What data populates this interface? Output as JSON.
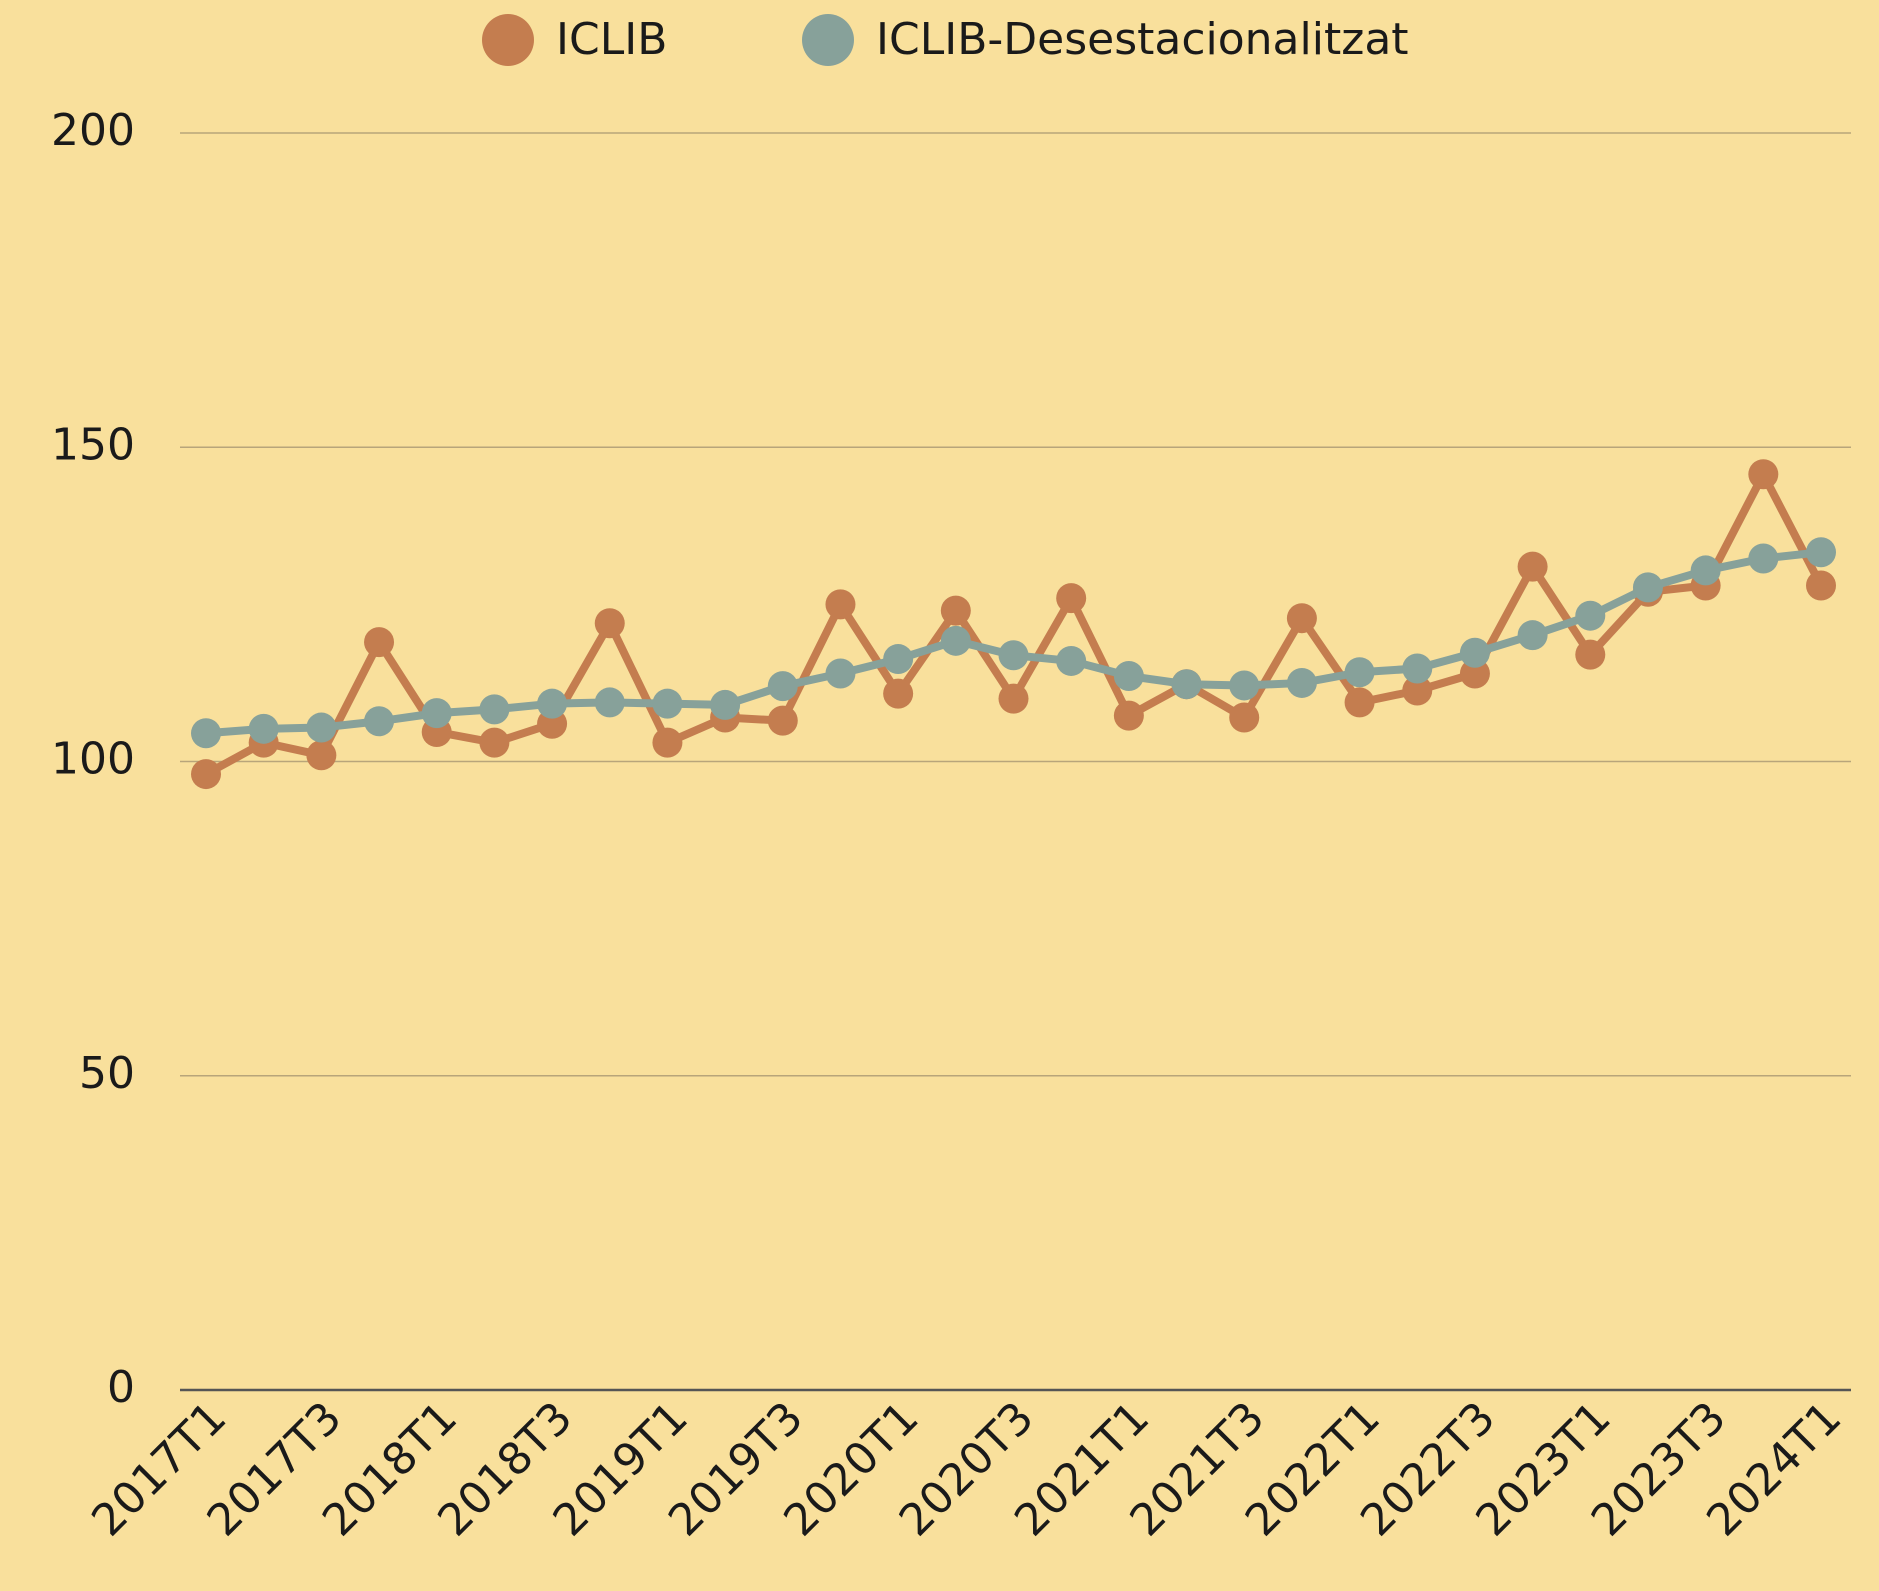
{
  "chart_data": {
    "type": "line",
    "categories": [
      "2017T1",
      null,
      "2017T3",
      null,
      "2018T1",
      null,
      "2018T3",
      null,
      "2019T1",
      null,
      "2019T3",
      null,
      "2020T1",
      null,
      "2020T3",
      null,
      "2021T1",
      null,
      "2021T3",
      null,
      "2022T1",
      null,
      "2022T3",
      null,
      "2023T1",
      null,
      "2023T3",
      null,
      "2024T1"
    ],
    "series": [
      {
        "name": "ICLIB",
        "color": "#c47d4f",
        "values": [
          98,
          103,
          101,
          119,
          104.7,
          103,
          106,
          122,
          103,
          107,
          106.5,
          125,
          110.8,
          124,
          110,
          126,
          107.3,
          112.3,
          107,
          122.8,
          109.4,
          111.3,
          114,
          131,
          117,
          127,
          128,
          145.7,
          128
        ]
      },
      {
        "name": "ICLIB-Desestacionalitzat",
        "color": "#87a19a",
        "values": [
          104.5,
          105.2,
          105.4,
          106.4,
          107.7,
          108.3,
          109.2,
          109.4,
          109.2,
          109,
          112,
          114,
          116.3,
          119.2,
          116.9,
          116,
          113.6,
          112.3,
          112.1,
          112.5,
          114.2,
          114.8,
          117.3,
          120.1,
          123.2,
          127.7,
          130.4,
          132.3,
          133.3
        ]
      }
    ],
    "ylim": [
      0,
      200
    ],
    "yticks": [
      0,
      50,
      100,
      150,
      200
    ],
    "grid": true,
    "legend": "top"
  }
}
